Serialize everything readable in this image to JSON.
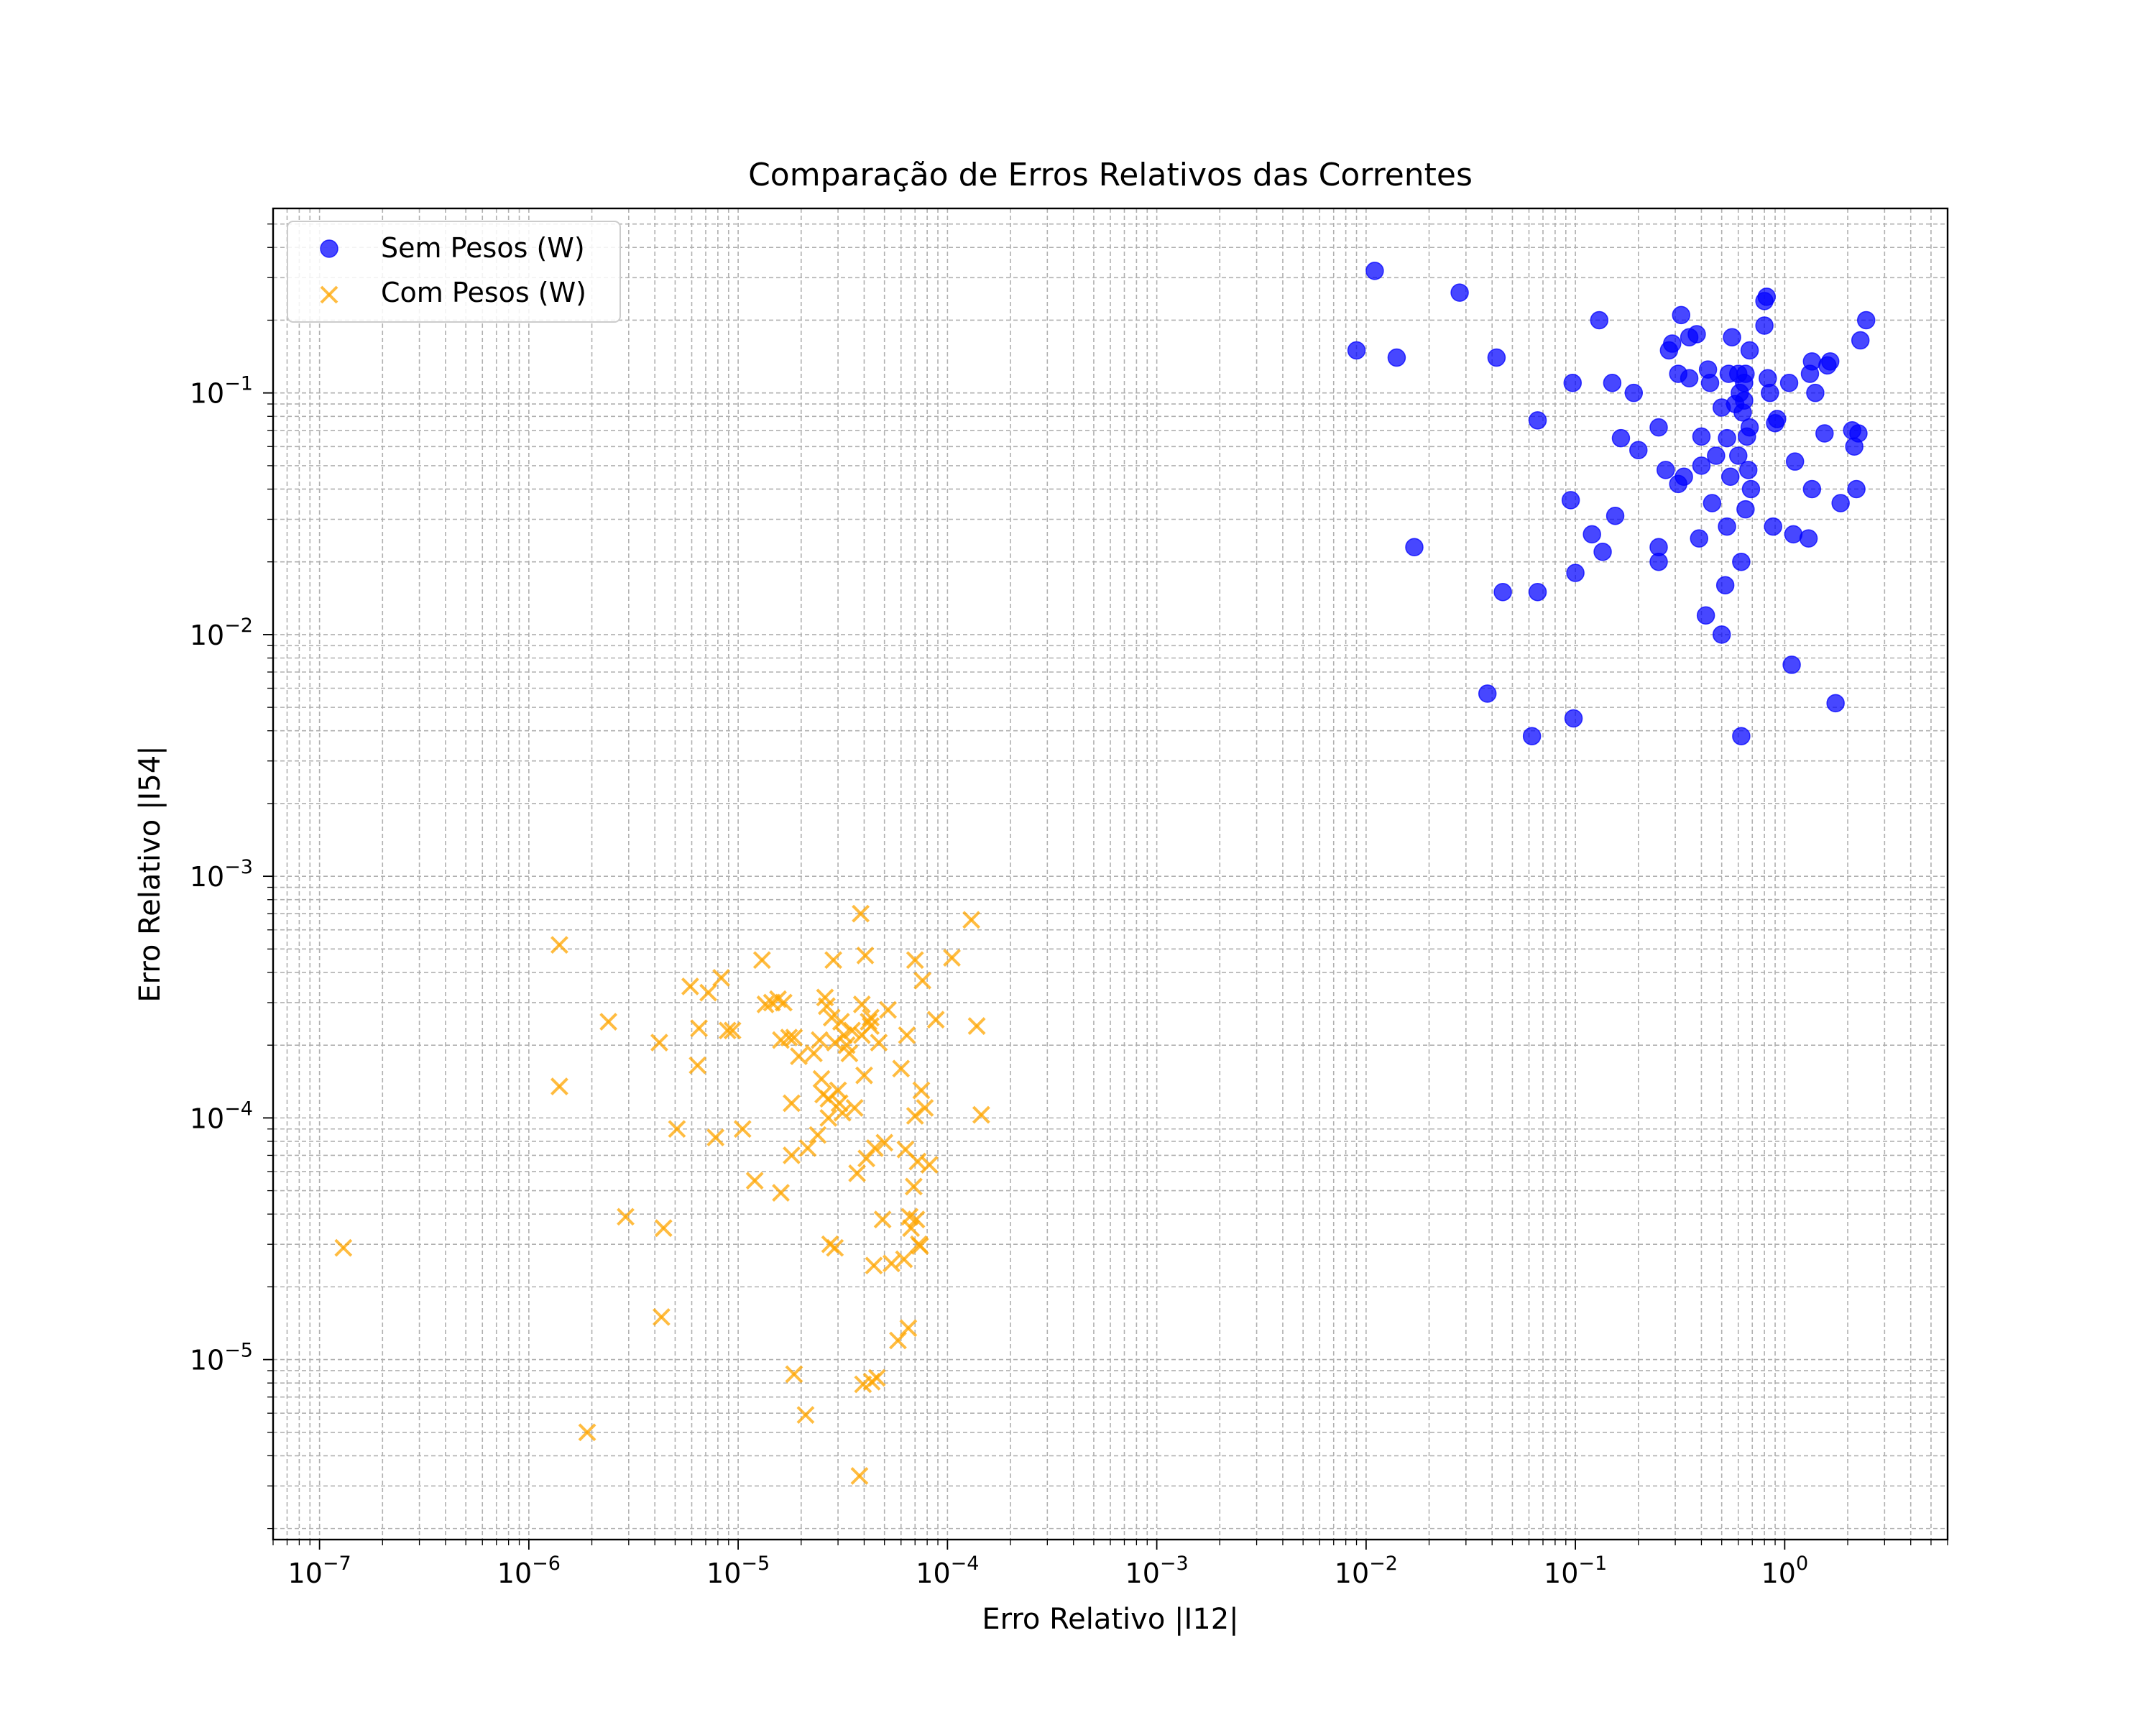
{
  "chart_data": {
    "type": "scatter",
    "title": "Comparação de Erros Relativos das Correntes",
    "xlabel": "Erro Relativo |I12|",
    "ylabel": "Erro Relativo |I54|",
    "xscale": "log",
    "yscale": "log",
    "xlim": [
      6e-08,
      6
    ],
    "ylim": [
      1.8e-06,
      0.58
    ],
    "grid": true,
    "grid_which": "both",
    "legend_position": "upper left",
    "x_ticks": [
      {
        "value": 1e-07,
        "base": "10",
        "exp": "−7"
      },
      {
        "value": 1e-06,
        "base": "10",
        "exp": "−6"
      },
      {
        "value": 1e-05,
        "base": "10",
        "exp": "−5"
      },
      {
        "value": 0.0001,
        "base": "10",
        "exp": "−4"
      },
      {
        "value": 0.001,
        "base": "10",
        "exp": "−3"
      },
      {
        "value": 0.01,
        "base": "10",
        "exp": "−2"
      },
      {
        "value": 0.1,
        "base": "10",
        "exp": "−1"
      },
      {
        "value": 1,
        "base": "10",
        "exp": "0"
      }
    ],
    "y_ticks": [
      {
        "value": 1e-05,
        "base": "10",
        "exp": "−5"
      },
      {
        "value": 0.0001,
        "base": "10",
        "exp": "−4"
      },
      {
        "value": 0.001,
        "base": "10",
        "exp": "−3"
      },
      {
        "value": 0.01,
        "base": "10",
        "exp": "−2"
      },
      {
        "value": 0.1,
        "base": "10",
        "exp": "−1"
      }
    ],
    "series": [
      {
        "name": "Sem Pesos (W)",
        "marker": "circle",
        "color": "#0000ff",
        "points": [
          [
            0.011,
            0.32
          ],
          [
            0.028,
            0.26
          ],
          [
            0.009,
            0.15
          ],
          [
            0.014,
            0.14
          ],
          [
            0.042,
            0.14
          ],
          [
            0.017,
            0.023
          ],
          [
            0.038,
            0.0057
          ],
          [
            0.062,
            0.0038
          ],
          [
            0.045,
            0.015
          ],
          [
            0.066,
            0.015
          ],
          [
            0.066,
            0.077
          ],
          [
            0.095,
            0.036
          ],
          [
            0.1,
            0.018
          ],
          [
            0.098,
            0.0045
          ],
          [
            0.097,
            0.11
          ],
          [
            0.12,
            0.026
          ],
          [
            0.13,
            0.2
          ],
          [
            0.135,
            0.022
          ],
          [
            0.15,
            0.11
          ],
          [
            0.155,
            0.031
          ],
          [
            0.165,
            0.065
          ],
          [
            0.19,
            0.1
          ],
          [
            0.2,
            0.058
          ],
          [
            0.25,
            0.072
          ],
          [
            0.25,
            0.023
          ],
          [
            0.25,
            0.02
          ],
          [
            0.27,
            0.048
          ],
          [
            0.28,
            0.15
          ],
          [
            0.29,
            0.16
          ],
          [
            0.31,
            0.12
          ],
          [
            0.31,
            0.042
          ],
          [
            0.32,
            0.21
          ],
          [
            0.33,
            0.045
          ],
          [
            0.35,
            0.115
          ],
          [
            0.35,
            0.17
          ],
          [
            0.38,
            0.175
          ],
          [
            0.39,
            0.025
          ],
          [
            0.4,
            0.05
          ],
          [
            0.4,
            0.066
          ],
          [
            0.42,
            0.012
          ],
          [
            0.43,
            0.125
          ],
          [
            0.44,
            0.11
          ],
          [
            0.45,
            0.035
          ],
          [
            0.47,
            0.055
          ],
          [
            0.5,
            0.087
          ],
          [
            0.5,
            0.01
          ],
          [
            0.52,
            0.016
          ],
          [
            0.53,
            0.065
          ],
          [
            0.53,
            0.028
          ],
          [
            0.54,
            0.12
          ],
          [
            0.55,
            0.045
          ],
          [
            0.56,
            0.17
          ],
          [
            0.58,
            0.09
          ],
          [
            0.6,
            0.055
          ],
          [
            0.6,
            0.12
          ],
          [
            0.61,
            0.1
          ],
          [
            0.62,
            0.0038
          ],
          [
            0.62,
            0.02
          ],
          [
            0.63,
            0.083
          ],
          [
            0.64,
            0.11
          ],
          [
            0.64,
            0.093
          ],
          [
            0.65,
            0.12
          ],
          [
            0.65,
            0.033
          ],
          [
            0.66,
            0.066
          ],
          [
            0.67,
            0.048
          ],
          [
            0.68,
            0.072
          ],
          [
            0.68,
            0.15
          ],
          [
            0.69,
            0.04
          ],
          [
            0.8,
            0.19
          ],
          [
            0.8,
            0.24
          ],
          [
            0.82,
            0.25
          ],
          [
            0.83,
            0.115
          ],
          [
            0.85,
            0.1
          ],
          [
            0.88,
            0.028
          ],
          [
            0.9,
            0.075
          ],
          [
            0.92,
            0.078
          ],
          [
            1.05,
            0.11
          ],
          [
            1.08,
            0.0075
          ],
          [
            1.1,
            0.026
          ],
          [
            1.12,
            0.052
          ],
          [
            1.3,
            0.025
          ],
          [
            1.32,
            0.12
          ],
          [
            1.35,
            0.135
          ],
          [
            1.35,
            0.04
          ],
          [
            1.4,
            0.1
          ],
          [
            1.55,
            0.068
          ],
          [
            1.6,
            0.13
          ],
          [
            1.65,
            0.135
          ],
          [
            1.75,
            0.0052
          ],
          [
            1.85,
            0.035
          ],
          [
            2.1,
            0.07
          ],
          [
            2.15,
            0.06
          ],
          [
            2.2,
            0.04
          ],
          [
            2.25,
            0.068
          ],
          [
            2.3,
            0.165
          ],
          [
            2.45,
            0.2
          ]
        ]
      },
      {
        "name": "Com Pesos (W)",
        "marker": "x",
        "color": "#ffa500",
        "points": [
          [
            1.3e-07,
            2.9e-05
          ],
          [
            1.4e-06,
            0.00052
          ],
          [
            1.4e-06,
            0.000135
          ],
          [
            1.9e-06,
            5e-06
          ],
          [
            2.4e-06,
            0.00025
          ],
          [
            2.9e-06,
            3.9e-05
          ],
          [
            4.2e-06,
            0.000205
          ],
          [
            4.3e-06,
            1.5e-05
          ],
          [
            4.4e-06,
            3.5e-05
          ],
          [
            5.1e-06,
            9e-05
          ],
          [
            5.9e-06,
            0.00035
          ],
          [
            6.4e-06,
            0.000165
          ],
          [
            6.5e-06,
            0.000235
          ],
          [
            7.2e-06,
            0.00033
          ],
          [
            7.8e-06,
            8.3e-05
          ],
          [
            8.3e-06,
            0.00038
          ],
          [
            8.9e-06,
            0.00023
          ],
          [
            9.4e-06,
            0.00023
          ],
          [
            1.05e-05,
            9e-05
          ],
          [
            1.2e-05,
            5.5e-05
          ],
          [
            1.3e-05,
            0.00045
          ],
          [
            1.35e-05,
            0.000295
          ],
          [
            1.45e-05,
            0.0003
          ],
          [
            1.55e-05,
            0.00031
          ],
          [
            1.6e-05,
            4.9e-05
          ],
          [
            1.6e-05,
            0.00021
          ],
          [
            1.65e-05,
            0.0003
          ],
          [
            1.75e-05,
            0.000215
          ],
          [
            1.8e-05,
            7e-05
          ],
          [
            1.8e-05,
            0.000115
          ],
          [
            1.85e-05,
            0.000215
          ],
          [
            1.85e-05,
            8.7e-06
          ],
          [
            1.95e-05,
            0.00018
          ],
          [
            2.1e-05,
            5.9e-06
          ],
          [
            2.15e-05,
            7.5e-05
          ],
          [
            2.3e-05,
            0.000185
          ],
          [
            2.4e-05,
            8.5e-05
          ],
          [
            2.45e-05,
            0.00021
          ],
          [
            2.5e-05,
            0.000145
          ],
          [
            2.55e-05,
            0.000125
          ],
          [
            2.6e-05,
            0.000315
          ],
          [
            2.65e-05,
            0.00029
          ],
          [
            2.7e-05,
            0.00012
          ],
          [
            2.7e-05,
            0.0001
          ],
          [
            2.75e-05,
            3e-05
          ],
          [
            2.8e-05,
            0.00026
          ],
          [
            2.85e-05,
            0.00045
          ],
          [
            2.9e-05,
            2.9e-05
          ],
          [
            2.9e-05,
            0.000205
          ],
          [
            3e-05,
            0.00013
          ],
          [
            3.05e-05,
            0.000115
          ],
          [
            3.1e-05,
            0.00025
          ],
          [
            3.15e-05,
            0.000105
          ],
          [
            3.2e-05,
            0.00022
          ],
          [
            3.3e-05,
            0.0002
          ],
          [
            3.4e-05,
            0.000185
          ],
          [
            3.5e-05,
            0.00023
          ],
          [
            3.6e-05,
            0.00011
          ],
          [
            3.7e-05,
            5.9e-05
          ],
          [
            3.8e-05,
            3.3e-06
          ],
          [
            3.85e-05,
            0.0007
          ],
          [
            3.9e-05,
            0.00022
          ],
          [
            3.9e-05,
            0.000295
          ],
          [
            3.95e-05,
            7.9e-06
          ],
          [
            4e-05,
            0.00015
          ],
          [
            4.05e-05,
            0.00047
          ],
          [
            4.1e-05,
            6.8e-05
          ],
          [
            4.2e-05,
            0.00025
          ],
          [
            4.3e-05,
            0.00024
          ],
          [
            4.3e-05,
            0.00026
          ],
          [
            4.35e-05,
            8.1e-06
          ],
          [
            4.45e-05,
            2.45e-05
          ],
          [
            4.5e-05,
            7.5e-05
          ],
          [
            4.6e-05,
            8.4e-06
          ],
          [
            4.7e-05,
            0.000205
          ],
          [
            4.9e-05,
            3.8e-05
          ],
          [
            5e-05,
            7.9e-05
          ],
          [
            5.2e-05,
            0.00028
          ],
          [
            5.4e-05,
            2.5e-05
          ],
          [
            5.8e-05,
            1.2e-05
          ],
          [
            6e-05,
            0.00016
          ],
          [
            6.2e-05,
            2.6e-05
          ],
          [
            6.3e-05,
            7.4e-05
          ],
          [
            6.4e-05,
            0.00022
          ],
          [
            6.5e-05,
            1.35e-05
          ],
          [
            6.6e-05,
            3.9e-05
          ],
          [
            6.7e-05,
            3.5e-05
          ],
          [
            6.9e-05,
            5.2e-05
          ],
          [
            7e-05,
            0.00045
          ],
          [
            7e-05,
            0.000102
          ],
          [
            7.1e-05,
            3.8e-05
          ],
          [
            7.2e-05,
            6.6e-05
          ],
          [
            7.3e-05,
            3e-05
          ],
          [
            7.4e-05,
            2.95e-05
          ],
          [
            7.5e-05,
            0.00013
          ],
          [
            7.6e-05,
            0.00037
          ],
          [
            7.8e-05,
            0.00011
          ],
          [
            8.2e-05,
            6.4e-05
          ],
          [
            8.8e-05,
            0.000255
          ],
          [
            0.000105,
            0.00046
          ],
          [
            0.00013,
            0.00066
          ],
          [
            0.000138,
            0.00024
          ],
          [
            0.000145,
            0.000103
          ]
        ]
      }
    ]
  }
}
